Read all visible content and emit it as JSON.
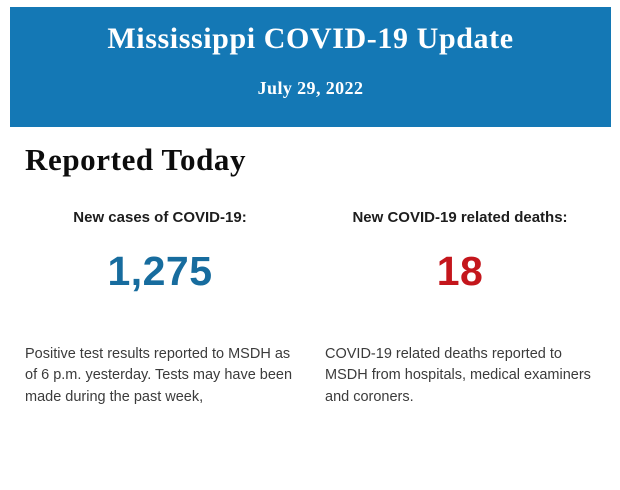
{
  "banner": {
    "title": "Mississippi COVID-19 Update",
    "date": "July 29, 2022",
    "bg_color": "#1478b5",
    "text_color": "#ffffff"
  },
  "section": {
    "heading": "Reported Today"
  },
  "stats": [
    {
      "label": "New cases of COVID-19:",
      "value": "1,275",
      "value_color": "#176c9e",
      "description": "Positive test results reported to MSDH as of 6 p.m. yesterday. Tests may have been made during the past week,",
      "description_lines": [
        "Positive test results reported to MSDH as",
        "of 6 p.m. yesterday. Tests may have been",
        "made during the past week,"
      ]
    },
    {
      "label": "New COVID-19 related deaths:",
      "value": "18",
      "value_color": "#c4161c",
      "description": "COVID-19 related deaths reported to MSDH from hospitals, medical examiners and coroners.",
      "description_lines": [
        "COVID-19 related deaths reported to",
        "MSDH from hospitals, medical examiners",
        "and coroners."
      ]
    }
  ]
}
